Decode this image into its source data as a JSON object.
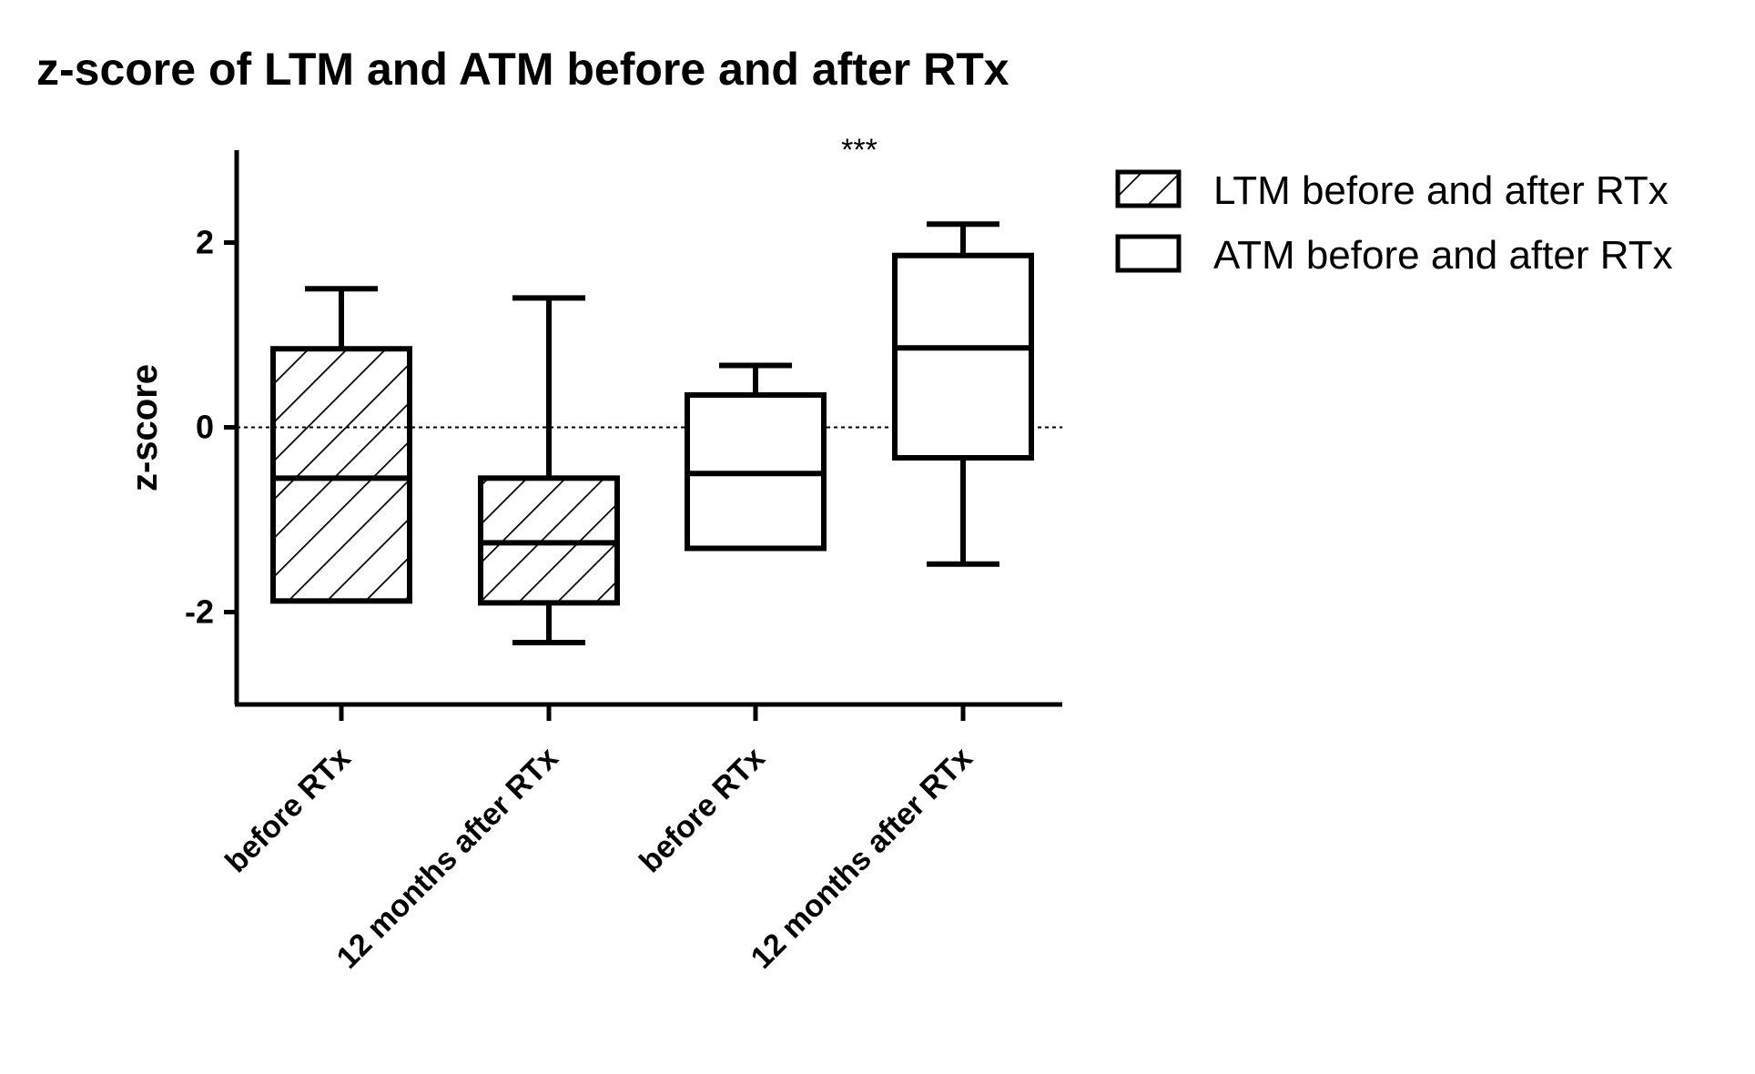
{
  "chart_data": {
    "type": "box",
    "title": "z-score of LTM and ATM before and after RTx",
    "xlabel": "",
    "ylabel": "z-score",
    "ylim": [
      -3.0,
      3.0
    ],
    "yticks": [
      -2,
      0,
      2
    ],
    "reference_line": 0,
    "categories": [
      "before RTx",
      "12 months after RTx",
      "before RTx",
      "12 months after RTx"
    ],
    "series": [
      {
        "name": "LTM before and after RTx",
        "fill": "hatched",
        "boxes": [
          {
            "category_index": 0,
            "min": -1.88,
            "q1": -1.88,
            "median": -0.55,
            "q3": 0.85,
            "max": 1.5
          },
          {
            "category_index": 1,
            "min": -2.33,
            "q1": -1.9,
            "median": -1.25,
            "q3": -0.55,
            "max": 1.4
          }
        ]
      },
      {
        "name": "ATM before and after RTx",
        "fill": "open",
        "boxes": [
          {
            "category_index": 2,
            "min": -1.31,
            "q1": -1.31,
            "median": -0.5,
            "q3": 0.35,
            "max": 0.67
          },
          {
            "category_index": 3,
            "min": -1.48,
            "q1": -0.33,
            "median": 0.86,
            "q3": 1.86,
            "max": 2.2
          }
        ]
      }
    ],
    "annotations": [
      {
        "text": "***",
        "category_index": 3
      }
    ],
    "legend_position": "top-right",
    "grid": false
  }
}
